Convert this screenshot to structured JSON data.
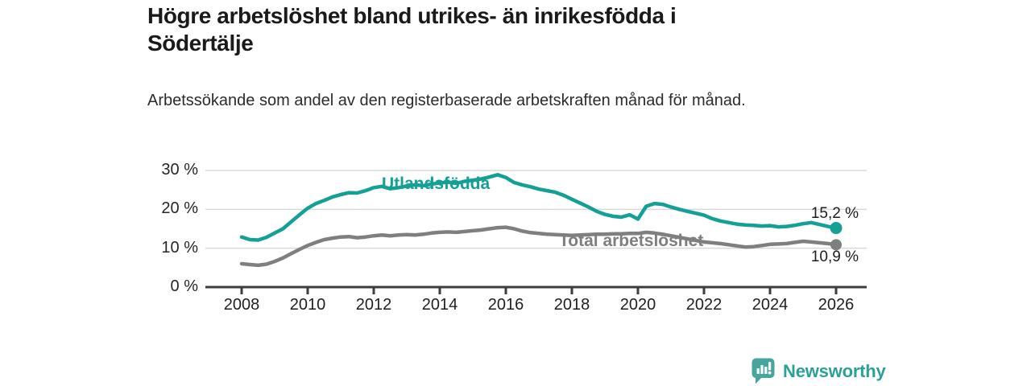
{
  "header": {
    "title": "Högre arbetslöshet bland utrikes- än inrikesfödda i Södertälje",
    "subtitle": "Arbetssökande som andel av den registerbaserade arbetskraften månad för månad."
  },
  "branding": {
    "logo_text": "Newsworthy",
    "logo_icon": "bar-chart-speech-bubble-icon"
  },
  "colors": {
    "series_foreign": "#14a096",
    "series_total": "#7f7f7f",
    "axis": "#3d3d3d",
    "gridline": "#d9d9d9",
    "title_text": "#1a1a1a",
    "end_label_text": "#1d1d1d",
    "logo_icon_teal": "#46a69e",
    "logo_text_teal": "#2aa099"
  },
  "chart_data": {
    "type": "line",
    "title": "Högre arbetslöshet bland utrikes- än inrikesfödda i Södertälje",
    "xlabel": "",
    "ylabel": "",
    "grid": "horizontal",
    "legend_position": "inline-labels",
    "xlim": [
      2008,
      2026
    ],
    "ylim": [
      0,
      31
    ],
    "x_ticks": [
      {
        "value": 2008,
        "label": "2008"
      },
      {
        "value": 2010,
        "label": "2010"
      },
      {
        "value": 2012,
        "label": "2012"
      },
      {
        "value": 2014,
        "label": "2014"
      },
      {
        "value": 2016,
        "label": "2016"
      },
      {
        "value": 2018,
        "label": "2018"
      },
      {
        "value": 2020,
        "label": "2020"
      },
      {
        "value": 2022,
        "label": "2022"
      },
      {
        "value": 2024,
        "label": "2024"
      },
      {
        "value": 2026,
        "label": "2026"
      }
    ],
    "y_ticks": [
      {
        "value": 0,
        "label": "0 %"
      },
      {
        "value": 10,
        "label": "10 %"
      },
      {
        "value": 20,
        "label": "20 %"
      },
      {
        "value": 30,
        "label": "30 %"
      }
    ],
    "series": [
      {
        "name": "Utlandsfödda",
        "color_key": "series_foreign",
        "end_label": "15,2 %",
        "end_value": 15.2,
        "x_start": 2008,
        "x_step": 0.25,
        "values": [
          12.9,
          12.2,
          12.1,
          12.8,
          13.9,
          15.0,
          16.8,
          18.6,
          20.3,
          21.5,
          22.3,
          23.2,
          23.8,
          24.3,
          24.2,
          24.8,
          25.6,
          25.9,
          25.3,
          25.6,
          26.0,
          26.3,
          26.1,
          26.5,
          26.8,
          27.0,
          26.7,
          27.2,
          27.5,
          27.8,
          28.3,
          28.9,
          28.2,
          26.9,
          26.3,
          25.8,
          25.2,
          24.8,
          24.4,
          23.6,
          22.6,
          21.6,
          20.6,
          19.5,
          18.7,
          18.2,
          18.0,
          18.6,
          17.5,
          20.8,
          21.5,
          21.3,
          20.6,
          20.0,
          19.5,
          19.0,
          18.5,
          17.6,
          17.0,
          16.6,
          16.2,
          16.0,
          15.9,
          15.7,
          15.8,
          15.5,
          15.6,
          15.9,
          16.3,
          16.6,
          16.1,
          15.6,
          15.2
        ]
      },
      {
        "name": "Total arbetslöshet",
        "color_key": "series_total",
        "end_label": "10,9 %",
        "end_value": 10.9,
        "x_start": 2008,
        "x_step": 0.25,
        "values": [
          6.0,
          5.8,
          5.6,
          5.9,
          6.6,
          7.5,
          8.6,
          9.7,
          10.7,
          11.5,
          12.2,
          12.6,
          12.9,
          13.0,
          12.7,
          12.9,
          13.2,
          13.4,
          13.2,
          13.4,
          13.5,
          13.4,
          13.6,
          13.9,
          14.1,
          14.2,
          14.1,
          14.3,
          14.5,
          14.7,
          15.0,
          15.3,
          15.4,
          15.0,
          14.4,
          14.0,
          13.8,
          13.6,
          13.5,
          13.4,
          13.3,
          13.4,
          13.5,
          13.6,
          13.6,
          13.7,
          13.7,
          13.8,
          13.8,
          14.1,
          13.9,
          13.6,
          13.2,
          12.8,
          12.4,
          12.0,
          11.6,
          11.4,
          11.2,
          10.9,
          10.6,
          10.3,
          10.4,
          10.7,
          11.0,
          11.1,
          11.2,
          11.5,
          11.8,
          11.6,
          11.4,
          11.2,
          10.9
        ]
      }
    ]
  }
}
